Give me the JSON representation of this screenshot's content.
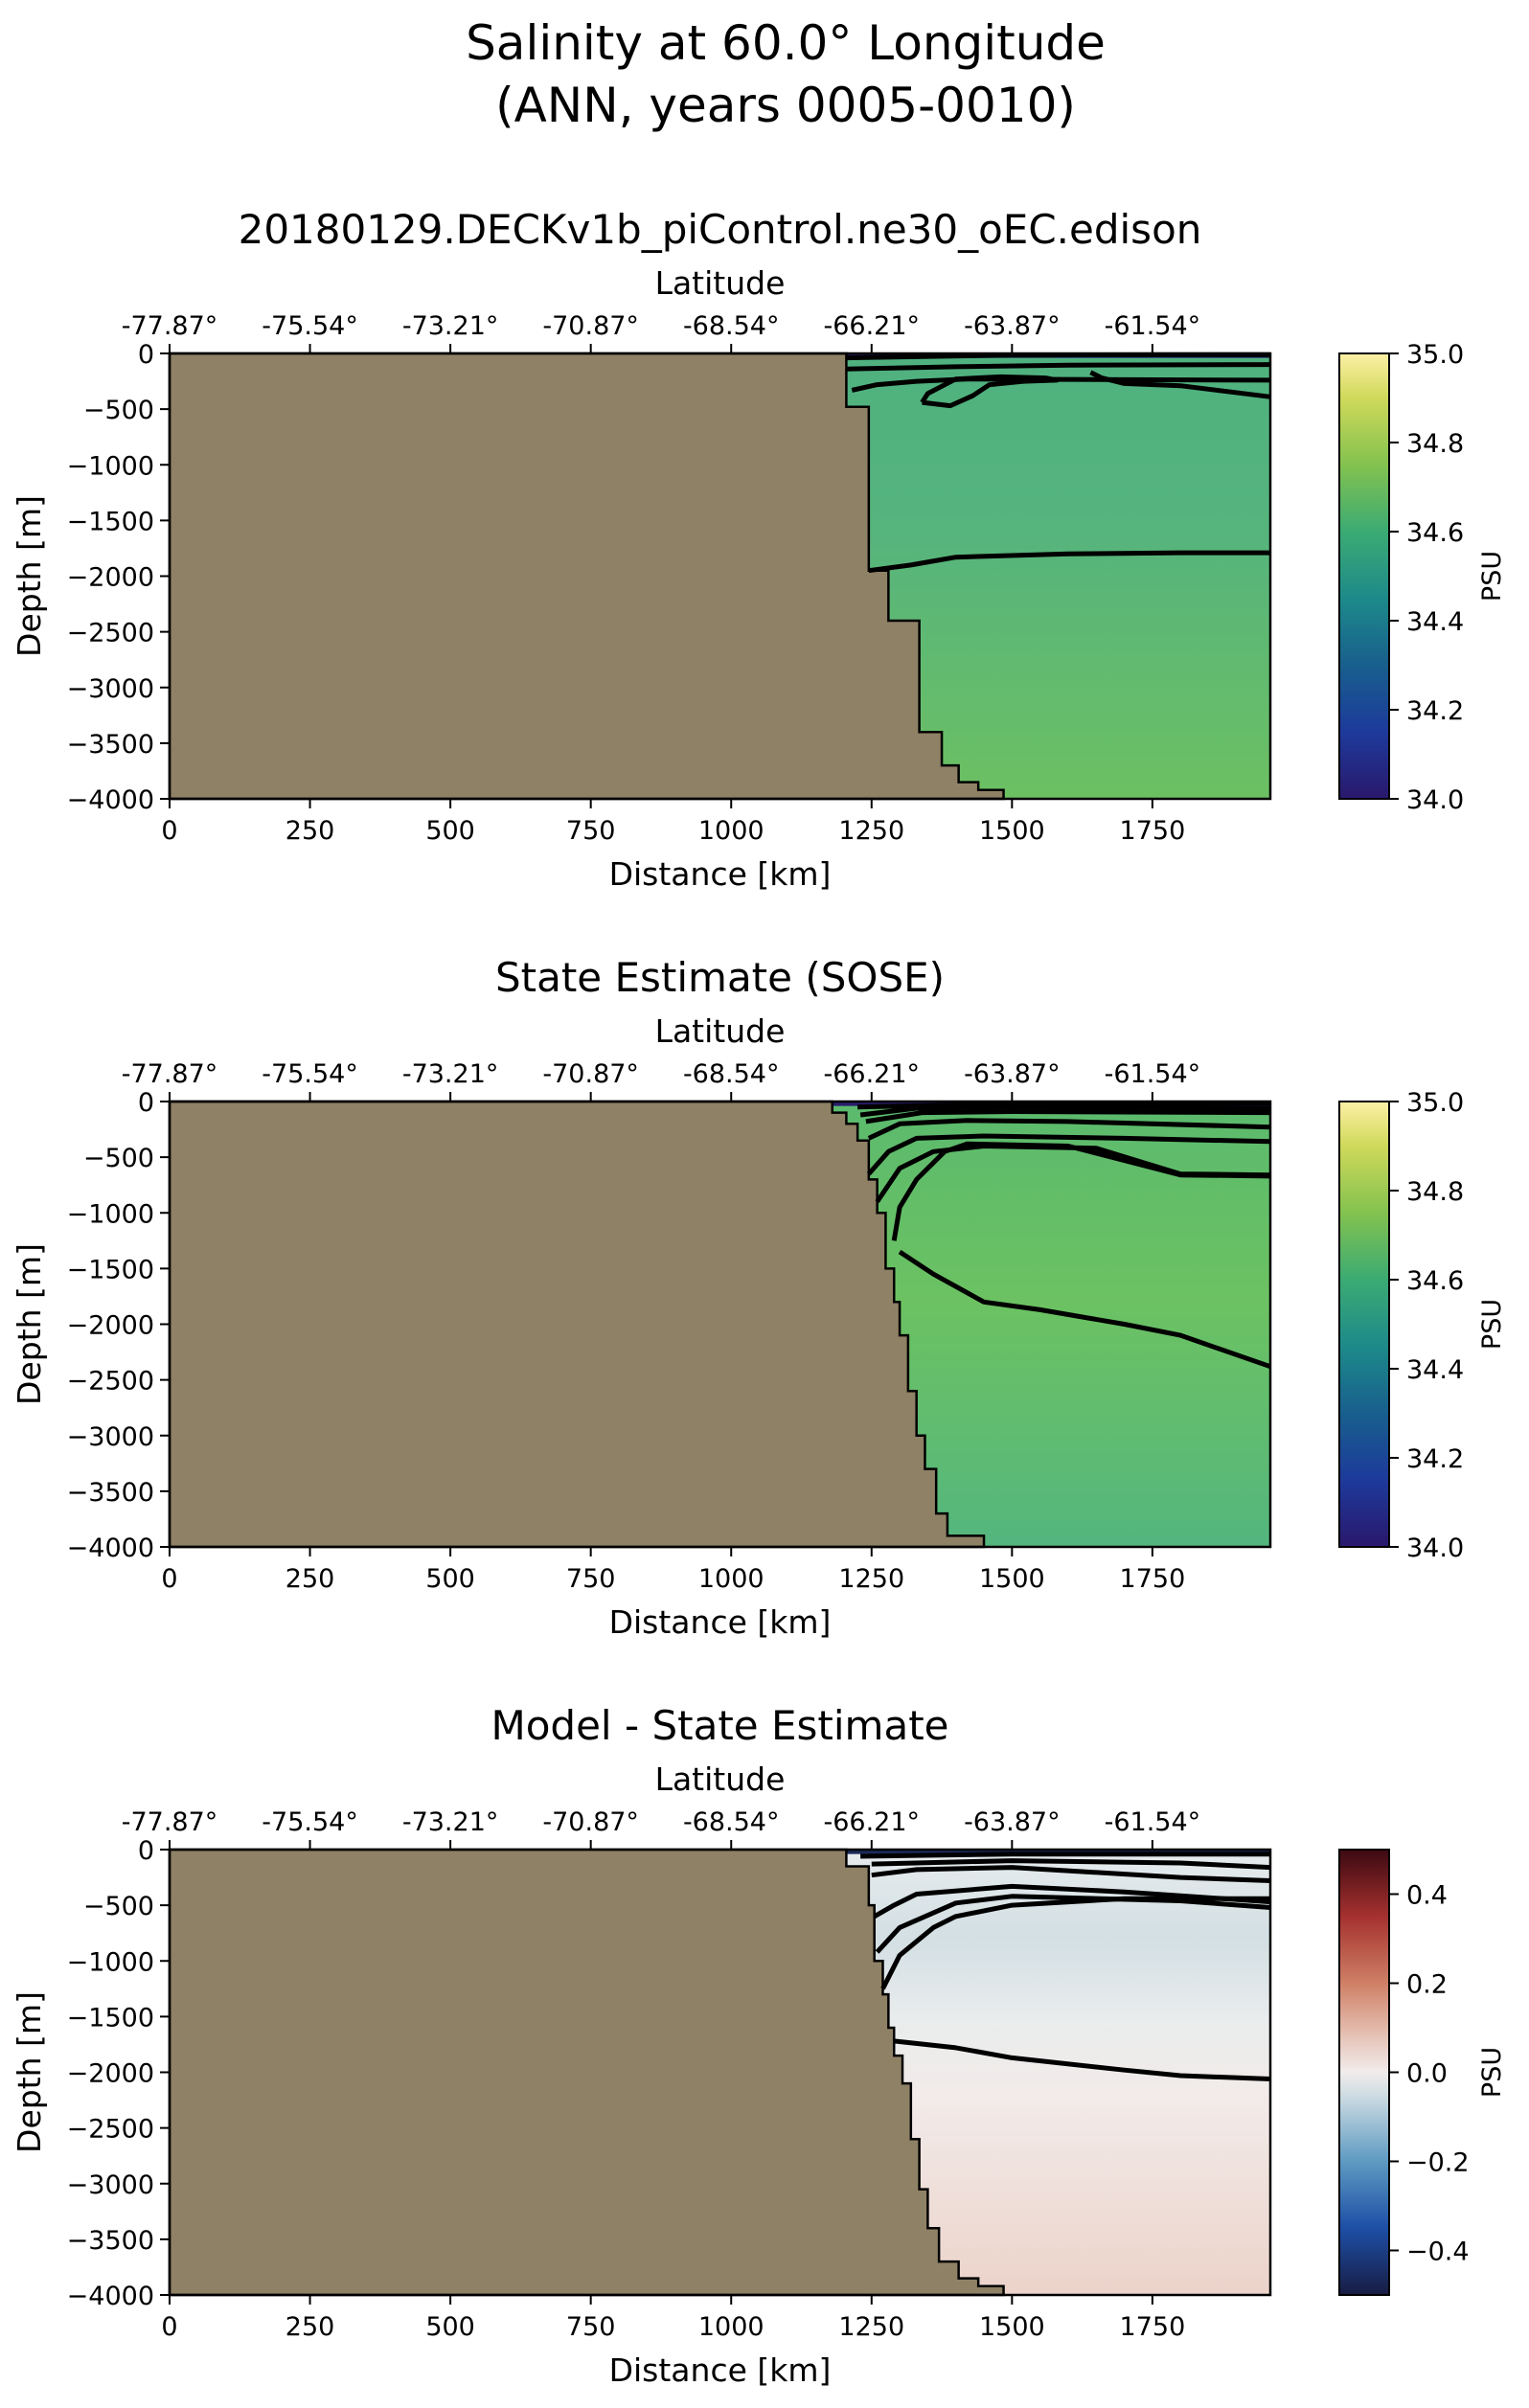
{
  "figure": {
    "title_line1": "Salinity at 60.0° Longitude",
    "title_line2": "(ANN, years 0005-0010)"
  },
  "chart_data": [
    {
      "type": "heatmap",
      "title": "20180129.DECKv1b_piControl.ne30_oEC.edison",
      "xlabel": "Distance [km]",
      "ylabel": "Depth [m]",
      "top_axis_label": "Latitude",
      "xlim": [
        0,
        1960
      ],
      "ylim": [
        -4000,
        0
      ],
      "xticks": [
        0,
        250,
        500,
        750,
        1000,
        1250,
        1500,
        1750
      ],
      "yticks": [
        0,
        -500,
        -1000,
        -1500,
        -2000,
        -2500,
        -3000,
        -3500,
        -4000
      ],
      "top_ticks": [
        "-77.87°",
        "-75.54°",
        "-73.21°",
        "-70.87°",
        "-68.54°",
        "-66.21°",
        "-63.87°",
        "-61.54°"
      ],
      "colorbar": {
        "label": "PSU",
        "range": [
          34.0,
          35.0
        ],
        "ticks": [
          "35.0",
          "34.8",
          "34.6",
          "34.4",
          "34.2",
          "34.0"
        ],
        "colormap": "haline"
      },
      "land_color": "#8f8165",
      "bathymetry": [
        [
          1205,
          0
        ],
        [
          1205,
          -480
        ],
        [
          1245,
          -480
        ],
        [
          1245,
          -1950
        ],
        [
          1280,
          -1950
        ],
        [
          1280,
          -2400
        ],
        [
          1335,
          -2400
        ],
        [
          1335,
          -3400
        ],
        [
          1375,
          -3400
        ],
        [
          1375,
          -3700
        ],
        [
          1405,
          -3700
        ],
        [
          1405,
          -3850
        ],
        [
          1440,
          -3850
        ],
        [
          1440,
          -3920
        ],
        [
          1485,
          -3920
        ],
        [
          1485,
          -4000
        ]
      ],
      "contours": [
        [
          [
            1205,
            -40
          ],
          [
            1500,
            -15
          ],
          [
            1960,
            -10
          ]
        ],
        [
          [
            1205,
            -140
          ],
          [
            1400,
            -120
          ],
          [
            1600,
            -105
          ],
          [
            1960,
            -100
          ]
        ],
        [
          [
            1215,
            -330
          ],
          [
            1260,
            -280
          ],
          [
            1330,
            -250
          ],
          [
            1420,
            -230
          ],
          [
            1960,
            -240
          ]
        ],
        [
          [
            1340,
            -440
          ],
          [
            1390,
            -470
          ],
          [
            1430,
            -380
          ],
          [
            1460,
            -280
          ],
          [
            1520,
            -250
          ],
          [
            1580,
            -240
          ],
          [
            1560,
            -220
          ],
          [
            1480,
            -210
          ],
          [
            1400,
            -230
          ],
          [
            1350,
            -360
          ],
          [
            1340,
            -440
          ]
        ],
        [
          [
            1640,
            -170
          ],
          [
            1660,
            -220
          ],
          [
            1700,
            -270
          ],
          [
            1800,
            -290
          ],
          [
            1960,
            -390
          ]
        ],
        [
          [
            1245,
            -1950
          ],
          [
            1320,
            -1900
          ],
          [
            1400,
            -1830
          ],
          [
            1600,
            -1800
          ],
          [
            1800,
            -1790
          ],
          [
            1960,
            -1790
          ]
        ]
      ]
    },
    {
      "type": "heatmap",
      "title": "State Estimate (SOSE)",
      "xlabel": "Distance [km]",
      "ylabel": "Depth [m]",
      "top_axis_label": "Latitude",
      "xlim": [
        0,
        1960
      ],
      "ylim": [
        -4000,
        0
      ],
      "xticks": [
        0,
        250,
        500,
        750,
        1000,
        1250,
        1500,
        1750
      ],
      "yticks": [
        0,
        -500,
        -1000,
        -1500,
        -2000,
        -2500,
        -3000,
        -3500,
        -4000
      ],
      "top_ticks": [
        "-77.87°",
        "-75.54°",
        "-73.21°",
        "-70.87°",
        "-68.54°",
        "-66.21°",
        "-63.87°",
        "-61.54°"
      ],
      "colorbar": {
        "label": "PSU",
        "range": [
          34.0,
          35.0
        ],
        "ticks": [
          "35.0",
          "34.8",
          "34.6",
          "34.4",
          "34.2",
          "34.0"
        ],
        "colormap": "haline"
      },
      "land_color": "#8f8165",
      "bathymetry": [
        [
          1180,
          0
        ],
        [
          1180,
          -100
        ],
        [
          1205,
          -100
        ],
        [
          1205,
          -200
        ],
        [
          1225,
          -200
        ],
        [
          1225,
          -350
        ],
        [
          1245,
          -350
        ],
        [
          1245,
          -700
        ],
        [
          1260,
          -700
        ],
        [
          1260,
          -1000
        ],
        [
          1275,
          -1000
        ],
        [
          1275,
          -1500
        ],
        [
          1290,
          -1500
        ],
        [
          1290,
          -1800
        ],
        [
          1300,
          -1800
        ],
        [
          1300,
          -2100
        ],
        [
          1315,
          -2100
        ],
        [
          1315,
          -2600
        ],
        [
          1330,
          -2600
        ],
        [
          1330,
          -3000
        ],
        [
          1345,
          -3000
        ],
        [
          1345,
          -3300
        ],
        [
          1365,
          -3300
        ],
        [
          1365,
          -3700
        ],
        [
          1385,
          -3700
        ],
        [
          1385,
          -3900
        ],
        [
          1450,
          -3900
        ],
        [
          1450,
          -4000
        ]
      ],
      "contours": [
        [
          [
            1225,
            -50
          ],
          [
            1500,
            -20
          ],
          [
            1960,
            -15
          ]
        ],
        [
          [
            1230,
            -120
          ],
          [
            1330,
            -60
          ],
          [
            1500,
            -50
          ],
          [
            1960,
            -60
          ]
        ],
        [
          [
            1240,
            -180
          ],
          [
            1340,
            -100
          ],
          [
            1500,
            -90
          ],
          [
            1960,
            -100
          ]
        ],
        [
          [
            1245,
            -330
          ],
          [
            1300,
            -200
          ],
          [
            1420,
            -170
          ],
          [
            1600,
            -180
          ],
          [
            1960,
            -230
          ]
        ],
        [
          [
            1245,
            -650
          ],
          [
            1280,
            -450
          ],
          [
            1330,
            -330
          ],
          [
            1450,
            -310
          ],
          [
            1700,
            -330
          ],
          [
            1960,
            -360
          ]
        ],
        [
          [
            1260,
            -900
          ],
          [
            1300,
            -600
          ],
          [
            1360,
            -450
          ],
          [
            1450,
            -400
          ],
          [
            1650,
            -420
          ],
          [
            1800,
            -650
          ],
          [
            1960,
            -660
          ]
        ],
        [
          [
            1290,
            -1250
          ],
          [
            1300,
            -950
          ],
          [
            1330,
            -700
          ],
          [
            1380,
            -450
          ],
          [
            1420,
            -380
          ],
          [
            1600,
            -400
          ],
          [
            1800,
            -660
          ],
          [
            1960,
            -670
          ]
        ],
        [
          [
            1300,
            -1350
          ],
          [
            1360,
            -1550
          ],
          [
            1450,
            -1800
          ],
          [
            1550,
            -1870
          ],
          [
            1700,
            -2000
          ],
          [
            1800,
            -2100
          ],
          [
            1960,
            -2380
          ]
        ]
      ]
    },
    {
      "type": "heatmap",
      "title": "Model - State Estimate",
      "xlabel": "Distance [km]",
      "ylabel": "Depth [m]",
      "top_axis_label": "Latitude",
      "xlim": [
        0,
        1960
      ],
      "ylim": [
        -4000,
        0
      ],
      "xticks": [
        0,
        250,
        500,
        750,
        1000,
        1250,
        1500,
        1750
      ],
      "yticks": [
        0,
        -500,
        -1000,
        -1500,
        -2000,
        -2500,
        -3000,
        -3500,
        -4000
      ],
      "top_ticks": [
        "-77.87°",
        "-75.54°",
        "-73.21°",
        "-70.87°",
        "-68.54°",
        "-66.21°",
        "-63.87°",
        "-61.54°"
      ],
      "colorbar": {
        "label": "PSU",
        "range": [
          -0.5,
          0.5
        ],
        "ticks": [
          "0.4",
          "0.2",
          "0.0",
          "−0.2",
          "−0.4"
        ],
        "tick_values": [
          0.4,
          0.2,
          0.0,
          -0.2,
          -0.4
        ],
        "colormap": "balance"
      },
      "land_color": "#8f8165",
      "bathymetry": [
        [
          1205,
          0
        ],
        [
          1205,
          -150
        ],
        [
          1245,
          -150
        ],
        [
          1245,
          -500
        ],
        [
          1255,
          -500
        ],
        [
          1255,
          -1000
        ],
        [
          1270,
          -1000
        ],
        [
          1270,
          -1300
        ],
        [
          1280,
          -1300
        ],
        [
          1280,
          -1600
        ],
        [
          1290,
          -1600
        ],
        [
          1290,
          -1850
        ],
        [
          1305,
          -1850
        ],
        [
          1305,
          -2100
        ],
        [
          1320,
          -2100
        ],
        [
          1320,
          -2600
        ],
        [
          1335,
          -2600
        ],
        [
          1335,
          -3050
        ],
        [
          1350,
          -3050
        ],
        [
          1350,
          -3400
        ],
        [
          1370,
          -3400
        ],
        [
          1370,
          -3700
        ],
        [
          1405,
          -3700
        ],
        [
          1405,
          -3850
        ],
        [
          1440,
          -3850
        ],
        [
          1440,
          -3920
        ],
        [
          1485,
          -3920
        ],
        [
          1485,
          -4000
        ]
      ],
      "contours": [
        [
          [
            1230,
            -60
          ],
          [
            1500,
            -40
          ],
          [
            1960,
            -40
          ]
        ],
        [
          [
            1250,
            -130
          ],
          [
            1500,
            -100
          ],
          [
            1800,
            -120
          ],
          [
            1960,
            -160
          ]
        ],
        [
          [
            1250,
            -230
          ],
          [
            1330,
            -180
          ],
          [
            1500,
            -160
          ],
          [
            1800,
            -250
          ],
          [
            1960,
            -280
          ]
        ],
        [
          [
            1255,
            -600
          ],
          [
            1290,
            -500
          ],
          [
            1330,
            -400
          ],
          [
            1500,
            -330
          ],
          [
            1700,
            -380
          ],
          [
            1960,
            -470
          ]
        ],
        [
          [
            1260,
            -920
          ],
          [
            1300,
            -700
          ],
          [
            1400,
            -480
          ],
          [
            1500,
            -420
          ],
          [
            1800,
            -460
          ],
          [
            1960,
            -520
          ]
        ],
        [
          [
            1270,
            -1250
          ],
          [
            1300,
            -950
          ],
          [
            1360,
            -700
          ],
          [
            1400,
            -600
          ],
          [
            1500,
            -500
          ],
          [
            1700,
            -440
          ],
          [
            1960,
            -440
          ]
        ],
        [
          [
            1290,
            -1720
          ],
          [
            1400,
            -1780
          ],
          [
            1500,
            -1870
          ],
          [
            1700,
            -1980
          ],
          [
            1800,
            -2030
          ],
          [
            1960,
            -2060
          ]
        ]
      ]
    }
  ]
}
